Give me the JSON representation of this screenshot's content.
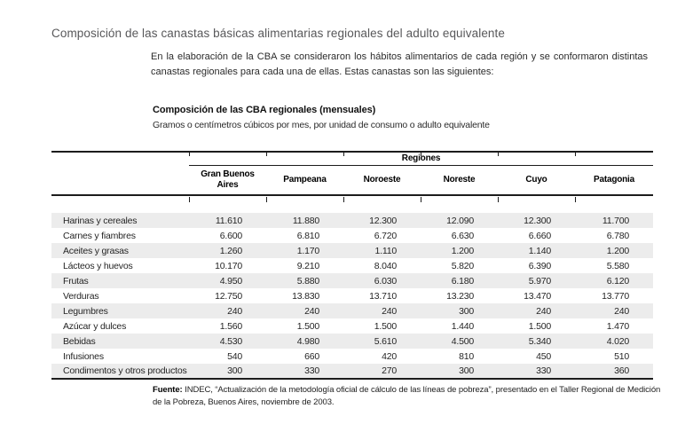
{
  "page": {
    "title": "Composición de las canastas básicas alimentarias regionales del adulto equivalente",
    "intro": "En la elaboración de la CBA se consideraron los hábitos alimentarios de cada región y se conformaron distintas canastas regionales para cada una de ellas. Estas canastas son las siguientes:"
  },
  "table": {
    "title": "Composición de las CBA regionales (mensuales)",
    "subtitle": "Gramos o centímetros cúbicos por mes, por unidad de consumo o adulto equivalente",
    "group_header": "Regiones",
    "columns": [
      "Gran Buenos Aires",
      "Pampeana",
      "Noroeste",
      "Noreste",
      "Cuyo",
      "Patagonia"
    ],
    "rows": [
      {
        "label": "Harinas y cereales",
        "values": [
          "11.610",
          "11.880",
          "12.300",
          "12.090",
          "12.300",
          "11.700"
        ]
      },
      {
        "label": "Carnes y fiambres",
        "values": [
          "6.600",
          "6.810",
          "6.720",
          "6.630",
          "6.660",
          "6.780"
        ]
      },
      {
        "label": "Aceites y grasas",
        "values": [
          "1.260",
          "1.170",
          "1.110",
          "1.200",
          "1.140",
          "1.200"
        ]
      },
      {
        "label": "Lácteos y huevos",
        "values": [
          "10.170",
          "9.210",
          "8.040",
          "5.820",
          "6.390",
          "5.580"
        ]
      },
      {
        "label": "Frutas",
        "values": [
          "4.950",
          "5.880",
          "6.030",
          "6.180",
          "5.970",
          "6.120"
        ]
      },
      {
        "label": "Verduras",
        "values": [
          "12.750",
          "13.830",
          "13.710",
          "13.230",
          "13.470",
          "13.770"
        ]
      },
      {
        "label": "Legumbres",
        "values": [
          "240",
          "240",
          "240",
          "300",
          "240",
          "240"
        ]
      },
      {
        "label": "Azúcar y dulces",
        "values": [
          "1.560",
          "1.500",
          "1.500",
          "1.440",
          "1.500",
          "1.470"
        ]
      },
      {
        "label": "Bebidas",
        "values": [
          "4.530",
          "4.980",
          "5.610",
          "4.500",
          "5.340",
          "4.020"
        ]
      },
      {
        "label": "Infusiones",
        "values": [
          "540",
          "660",
          "420",
          "810",
          "450",
          "510"
        ]
      },
      {
        "label": "Condimentos y otros productos",
        "values": [
          "300",
          "330",
          "270",
          "300",
          "330",
          "360"
        ]
      }
    ],
    "source_label": "Fuente:",
    "source_text": " INDEC, “Actualización de la metodología oficial de cálculo de las líneas de pobreza”, presentado en el Taller Regional de Medición de la Pobreza, Buenos Aires, noviembre de 2003."
  },
  "colors": {
    "stripe": "#ececec",
    "rule": "#1c1c1c",
    "title_gray": "#58585a"
  }
}
